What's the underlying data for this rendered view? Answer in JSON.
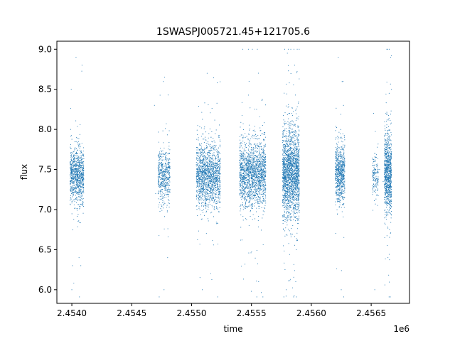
{
  "chart_data": {
    "type": "scatter",
    "title": "1SWASPJ005721.45+121705.6",
    "xlabel": "time",
    "ylabel": "flux",
    "x_offset_label": "1e6",
    "xlim": [
      2453875,
      2456820
    ],
    "ylim": [
      5.83,
      9.1
    ],
    "x_ticks": [
      2454000,
      2454500,
      2455000,
      2455500,
      2456000,
      2456500
    ],
    "x_tick_labels": [
      "2.4540",
      "2.4545",
      "2.4550",
      "2.4555",
      "2.4560",
      "2.4565"
    ],
    "y_ticks": [
      6.0,
      6.5,
      7.0,
      7.5,
      8.0,
      8.5,
      9.0
    ],
    "y_tick_labels": [
      "6.0",
      "6.5",
      "7.0",
      "7.5",
      "8.0",
      "8.5",
      "9.0"
    ],
    "grid": false,
    "marker_color": "#1f77b4",
    "series": [
      {
        "points": [
          [
            2453990,
            7.35
          ],
          [
            2454000,
            7.52
          ],
          [
            2454010,
            7.21
          ],
          [
            2454020,
            7.6
          ],
          [
            2454030,
            7.44
          ],
          [
            2454040,
            7.31
          ],
          [
            2454050,
            7.7
          ],
          [
            2454060,
            7.48
          ],
          [
            2454070,
            7.25
          ],
          [
            2454080,
            7.58
          ],
          [
            2454090,
            7.4
          ],
          [
            2453995,
            8.5
          ],
          [
            2454005,
            6.3
          ],
          [
            2454035,
            8.9
          ],
          [
            2454085,
            8.8
          ],
          [
            2454000,
            6.0
          ],
          [
            2454060,
            6.4
          ],
          [
            2454075,
            6.3
          ],
          [
            2454690,
            8.3
          ],
          [
            2454700,
            7.2
          ],
          [
            2454740,
            7.45
          ],
          [
            2454760,
            7.3
          ],
          [
            2454770,
            7.62
          ],
          [
            2454780,
            7.38
          ],
          [
            2454790,
            7.5
          ],
          [
            2454800,
            7.25
          ],
          [
            2454810,
            7.7
          ],
          [
            2454775,
            8.65
          ],
          [
            2454770,
            6.0
          ],
          [
            2454800,
            6.4
          ],
          [
            2455060,
            7.4
          ],
          [
            2455080,
            7.55
          ],
          [
            2455100,
            7.3
          ],
          [
            2455120,
            7.65
          ],
          [
            2455140,
            7.45
          ],
          [
            2455160,
            7.25
          ],
          [
            2455180,
            7.5
          ],
          [
            2455200,
            7.35
          ],
          [
            2455130,
            8.7
          ],
          [
            2455090,
            6.0
          ],
          [
            2455160,
            6.2
          ],
          [
            2455230,
            7.6
          ],
          [
            2455420,
            7.3
          ],
          [
            2455440,
            7.55
          ],
          [
            2455460,
            7.4
          ],
          [
            2455480,
            7.65
          ],
          [
            2455500,
            7.25
          ],
          [
            2455520,
            7.5
          ],
          [
            2455540,
            7.45
          ],
          [
            2455560,
            7.35
          ],
          [
            2455480,
            8.6
          ],
          [
            2455500,
            5.98
          ],
          [
            2455560,
            6.1
          ],
          [
            2455600,
            7.7
          ],
          [
            2455770,
            7.4
          ],
          [
            2455790,
            7.6
          ],
          [
            2455810,
            7.25
          ],
          [
            2455830,
            7.7
          ],
          [
            2455850,
            7.35
          ],
          [
            2455870,
            7.55
          ],
          [
            2455890,
            7.45
          ],
          [
            2455800,
            8.95
          ],
          [
            2455860,
            8.8
          ],
          [
            2455790,
            6.0
          ],
          [
            2455870,
            6.1
          ],
          [
            2455820,
            8.2
          ],
          [
            2456220,
            7.45
          ],
          [
            2456240,
            7.6
          ],
          [
            2456250,
            7.3
          ],
          [
            2456260,
            7.55
          ],
          [
            2456270,
            7.4
          ],
          [
            2456225,
            8.9
          ],
          [
            2456250,
            6.0
          ],
          [
            2456265,
            8.6
          ],
          [
            2456520,
            7.4
          ],
          [
            2456530,
            7.6
          ],
          [
            2456540,
            7.3
          ],
          [
            2456570,
            7.5
          ],
          [
            2456600,
            7.35
          ],
          [
            2456620,
            7.7
          ],
          [
            2456640,
            7.55
          ],
          [
            2456650,
            7.8
          ],
          [
            2456660,
            7.1
          ],
          [
            2456650,
            8.45
          ],
          [
            2456640,
            6.4
          ],
          [
            2456520,
            8.2
          ],
          [
            2456530,
            6.0
          ]
        ],
        "dense_segments": [
          {
            "x_start": 2453985,
            "x_end": 2454100,
            "y_center": 7.42,
            "y_spread": 0.28,
            "n": 900
          },
          {
            "x_start": 2454720,
            "x_end": 2454820,
            "y_center": 7.42,
            "y_spread": 0.28,
            "n": 500
          },
          {
            "x_start": 2455040,
            "x_end": 2455240,
            "y_center": 7.42,
            "y_spread": 0.32,
            "n": 1500
          },
          {
            "x_start": 2455400,
            "x_end": 2455620,
            "y_center": 7.44,
            "y_spread": 0.33,
            "n": 1700
          },
          {
            "x_start": 2455760,
            "x_end": 2455900,
            "y_center": 7.45,
            "y_spread": 0.45,
            "n": 2000
          },
          {
            "x_start": 2456200,
            "x_end": 2456280,
            "y_center": 7.45,
            "y_spread": 0.3,
            "n": 700
          },
          {
            "x_start": 2456510,
            "x_end": 2456560,
            "y_center": 7.42,
            "y_spread": 0.2,
            "n": 150
          },
          {
            "x_start": 2456610,
            "x_end": 2456670,
            "y_center": 7.45,
            "y_spread": 0.4,
            "n": 900
          }
        ]
      }
    ]
  }
}
